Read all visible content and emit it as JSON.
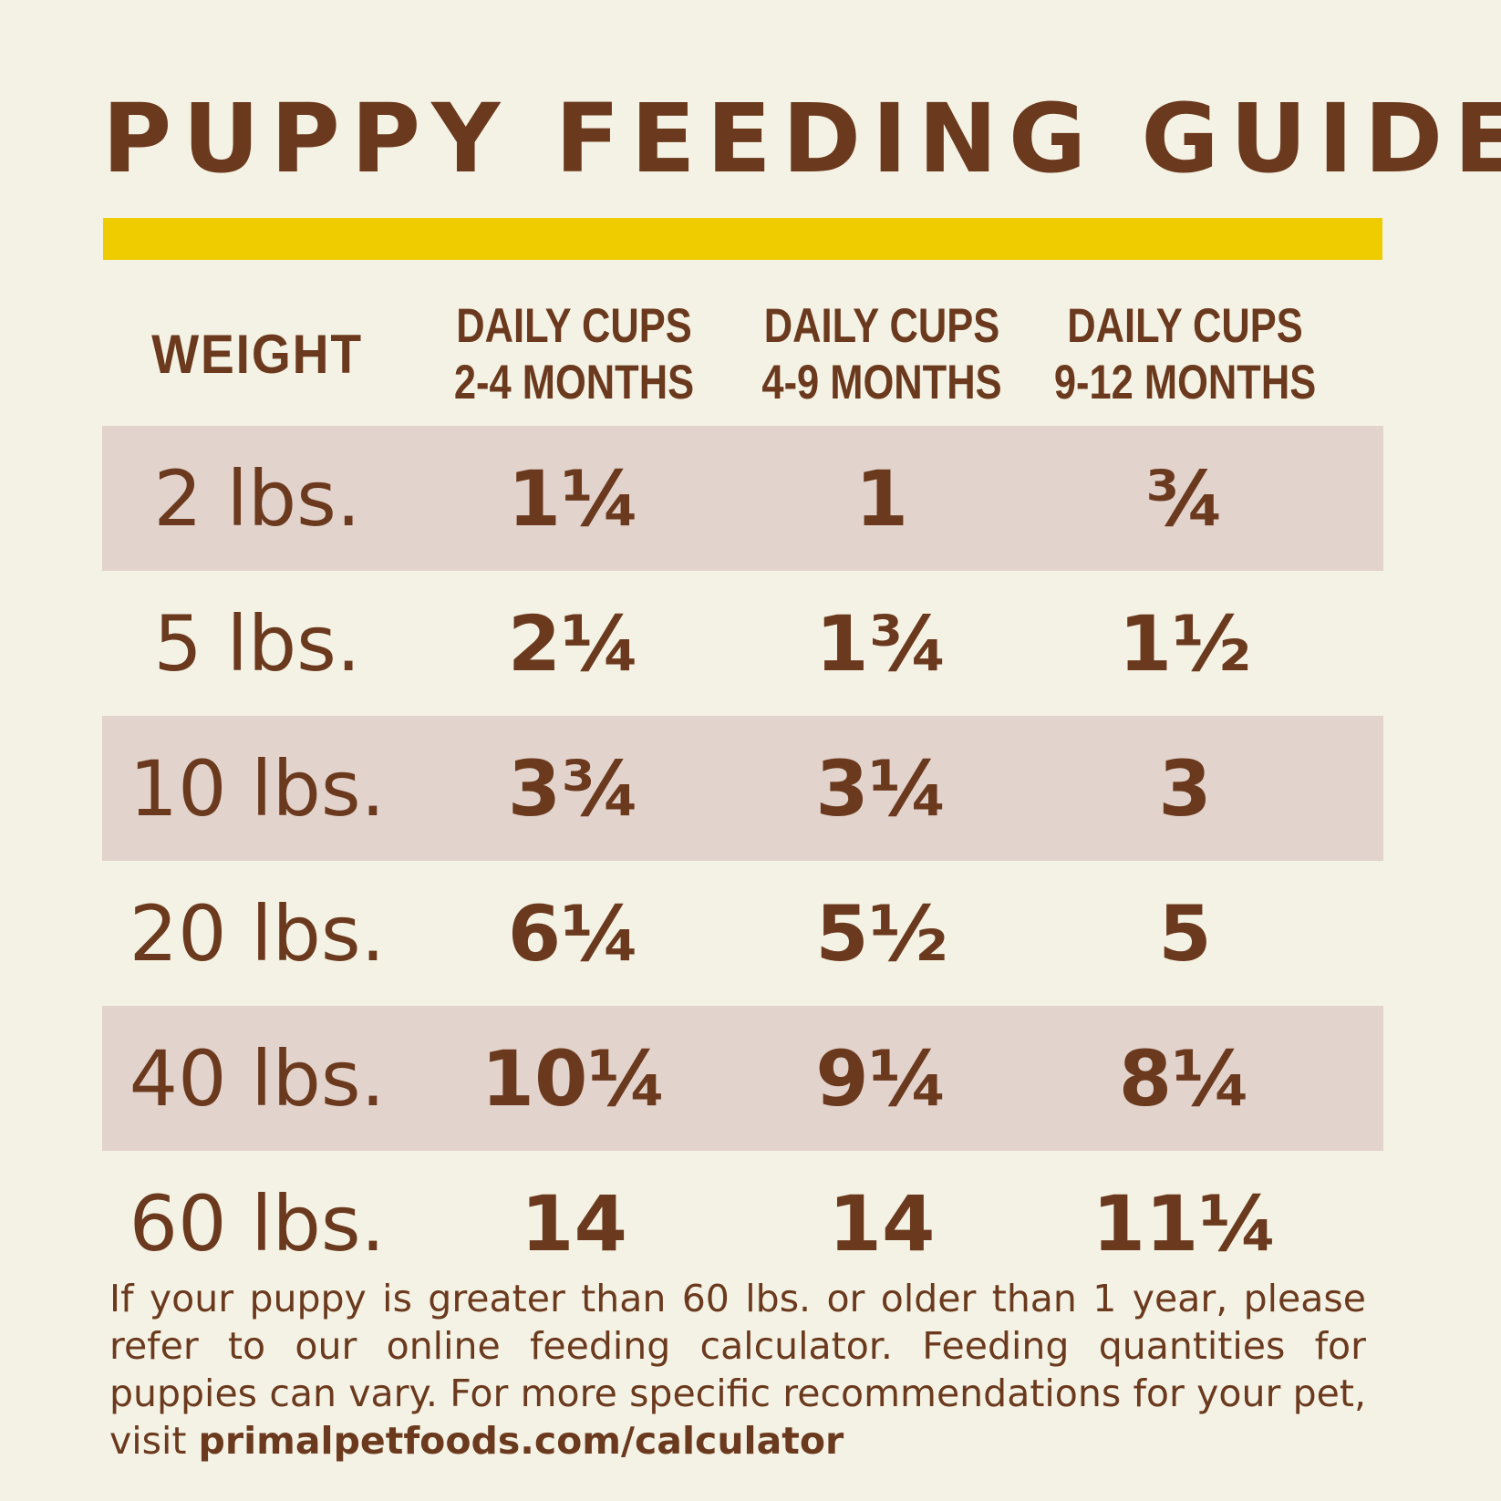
{
  "title": "PUPPY FEEDING GUIDE",
  "accent_colors": {
    "brown": "#6b3a1e",
    "yellow_rule": "#efcc00",
    "row_shade": "#e2d3cc",
    "background": "#f4f2e4"
  },
  "table": {
    "headers": {
      "weight": "WEIGHT",
      "col1_line1": "DAILY CUPS",
      "col1_line2": "2-4 MONTHS",
      "col2_line1": "DAILY CUPS",
      "col2_line2": "4-9 MONTHS",
      "col3_line1": "DAILY CUPS",
      "col3_line2": "9-12 MONTHS"
    },
    "rows": [
      {
        "weight": "2 lbs.",
        "m2_4": "1¼",
        "m4_9": "1",
        "m9_12": "¾"
      },
      {
        "weight": "5 lbs.",
        "m2_4": "2¼",
        "m4_9": "1¾",
        "m9_12": "1½"
      },
      {
        "weight": "10 lbs.",
        "m2_4": "3¾",
        "m4_9": "3¼",
        "m9_12": "3"
      },
      {
        "weight": "20 lbs.",
        "m2_4": "6¼",
        "m4_9": "5½",
        "m9_12": "5"
      },
      {
        "weight": "40 lbs.",
        "m2_4": "10¼",
        "m4_9": "9¼",
        "m9_12": "8¼"
      },
      {
        "weight": "60 lbs.",
        "m2_4": "14",
        "m4_9": "14",
        "m9_12": "11¼"
      }
    ]
  },
  "footnote": {
    "text": "If your puppy is greater than 60 lbs. or older than 1 year, please refer to our online feeding calculator. Feeding quantities for puppies can vary. For more specific recommendations for your pet, visit ",
    "link": "primalpetfoods.com/calculator"
  }
}
